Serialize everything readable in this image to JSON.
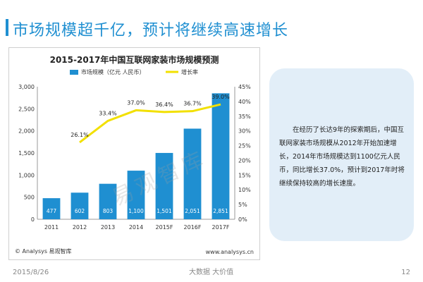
{
  "slide": {
    "title": "市场规模超千亿，预计将继续高速增长",
    "date": "2015/8/26",
    "tagline": "大数据    大价值",
    "page": "12"
  },
  "chart_footer": {
    "left": "© Analysys 易观智库",
    "right": "www.analysys.cn",
    "watermark": "易观智库"
  },
  "textbox": {
    "body": "在经历了长达9年的探索期后，中国互联网家装市场规模从2012年开始加速增长，2014年市场规模达到1100亿元人民币，同比增长37.0%，预计到2017年时将继续保持较高的增长速度。"
  },
  "colors": {
    "bar": "#1f8fd1",
    "line": "#f2e000",
    "accent": "#1f8fd1"
  },
  "chart_data": {
    "type": "bar",
    "title": "2015-2017年中国互联网家装市场规模预测",
    "categories": [
      "2011",
      "2012",
      "2013",
      "2014",
      "2015F",
      "2016F",
      "2017F"
    ],
    "series": [
      {
        "name": "市场规模（亿元 人民币）",
        "type": "bar",
        "axis": "left",
        "values": [
          477,
          602,
          803,
          1100,
          1501,
          2051,
          2851
        ],
        "labels": [
          "477",
          "602",
          "803",
          "1,100",
          "1,501",
          "2,051",
          "2,851"
        ]
      },
      {
        "name": "增长率",
        "type": "line",
        "axis": "right",
        "values": [
          null,
          26.1,
          33.4,
          37.0,
          36.4,
          36.7,
          39.0
        ],
        "labels": [
          "",
          "26.1%",
          "33.4%",
          "37.0%",
          "36.4%",
          "36.7%",
          "39.0%"
        ]
      }
    ],
    "y_left": {
      "range": [
        0,
        3000
      ],
      "ticks": [
        "0",
        "500",
        "1,000",
        "1,500",
        "2,000",
        "2,500",
        "3,000"
      ]
    },
    "y_right": {
      "range": [
        0,
        45
      ],
      "ticks": [
        "0%",
        "5%",
        "10%",
        "15%",
        "20%",
        "25%",
        "30%",
        "35%",
        "40%",
        "45%"
      ]
    },
    "grid": false,
    "legend_position": "top"
  }
}
